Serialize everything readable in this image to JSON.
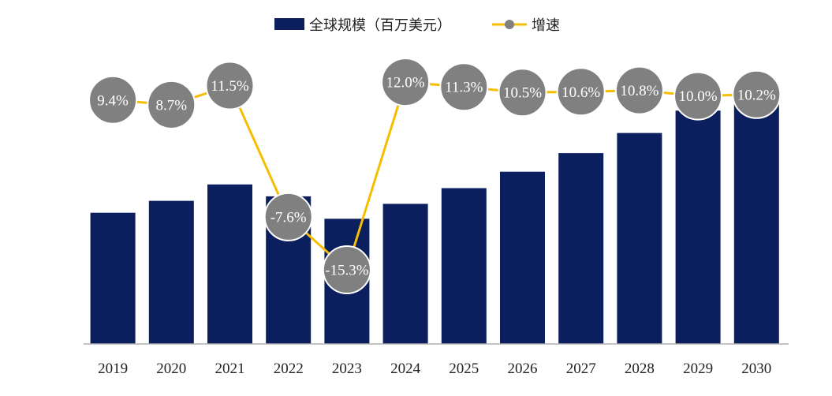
{
  "chart_data": {
    "type": "bar",
    "categories": [
      "2019",
      "2020",
      "2021",
      "2022",
      "2023",
      "2024",
      "2025",
      "2026",
      "2027",
      "2028",
      "2029",
      "2030"
    ],
    "series": [
      {
        "name": "全球规模（百万美元）",
        "kind": "bar",
        "color": "#0b1f5e",
        "values": [
          176,
          192,
          214,
          198,
          168,
          188,
          209,
          231,
          256,
          283,
          313,
          345
        ]
      },
      {
        "name": "增速",
        "kind": "line",
        "color": "#f5be00",
        "marker_color": "#808080",
        "values": [
          9.4,
          8.7,
          11.5,
          -7.6,
          -15.3,
          12.0,
          11.3,
          10.5,
          10.6,
          10.8,
          10.0,
          10.2
        ],
        "labels": [
          "9.4%",
          "8.7%",
          "11.5%",
          "-7.6%",
          "-15.3%",
          "12.0%",
          "11.3%",
          "10.5%",
          "10.6%",
          "10.8%",
          "10.0%",
          "10.2%"
        ]
      }
    ],
    "bar_ylim": [
      0,
      345
    ],
    "growth_ylim": [
      -20,
      15
    ],
    "legend_position": "top-center",
    "grid": false
  }
}
